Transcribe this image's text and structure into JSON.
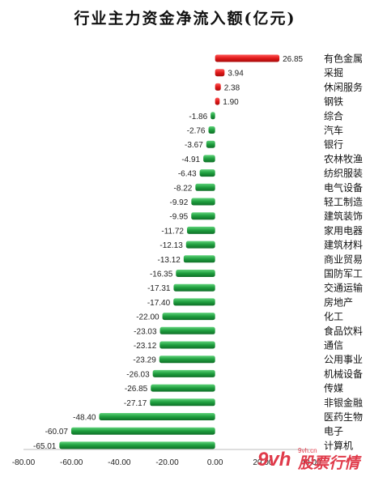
{
  "chart_data": {
    "type": "bar",
    "orientation": "horizontal",
    "title": "行业主力资金净流入额(亿元)",
    "xlabel": "",
    "ylabel": "",
    "xlim": [
      -80,
      40
    ],
    "x_ticks": [
      "-80.00",
      "-60.00",
      "-40.00",
      "-20.00",
      "0.00",
      "20.00",
      "40.00"
    ],
    "grid": false,
    "legend": "none",
    "categories": [
      "有色金属",
      "采掘",
      "休闲服务",
      "钢铁",
      "综合",
      "汽车",
      "银行",
      "农林牧渔",
      "纺织服装",
      "电气设备",
      "轻工制造",
      "建筑装饰",
      "家用电器",
      "建筑材料",
      "商业贸易",
      "国防军工",
      "交通运输",
      "房地产",
      "化工",
      "食品饮料",
      "通信",
      "公用事业",
      "机械设备",
      "传媒",
      "非银金融",
      "医药生物",
      "电子",
      "计算机"
    ],
    "values": [
      26.85,
      3.94,
      2.38,
      1.9,
      -1.86,
      -2.76,
      -3.67,
      -4.91,
      -6.43,
      -8.22,
      -9.92,
      -9.95,
      -11.72,
      -12.13,
      -13.12,
      -16.35,
      -17.31,
      -17.4,
      -22.0,
      -23.03,
      -23.12,
      -23.29,
      -26.03,
      -26.85,
      -27.17,
      -48.4,
      -60.07,
      -65.01
    ],
    "data_labels": [
      "26.85",
      "3.94",
      "2.38",
      "1.90",
      "-1.86",
      "-2.76",
      "-3.67",
      "-4.91",
      "-6.43",
      "-8.22",
      "-9.92",
      "-9.95",
      "-11.72",
      "-12.13",
      "-13.12",
      "-16.35",
      "-17.31",
      "-17.40",
      "-22.00",
      "-23.03",
      "-23.12",
      "-23.29",
      "-26.03",
      "-26.85",
      "-27.17",
      "-48.40",
      "-60.07",
      "-65.01"
    ],
    "colors": {
      "positive": "#e01818",
      "negative": "#1e9e3e"
    }
  },
  "watermark": {
    "brand_text": "股票行情",
    "logo_text": "9vh",
    "url_text": "9vh.cn",
    "color": "#e03a4a"
  }
}
